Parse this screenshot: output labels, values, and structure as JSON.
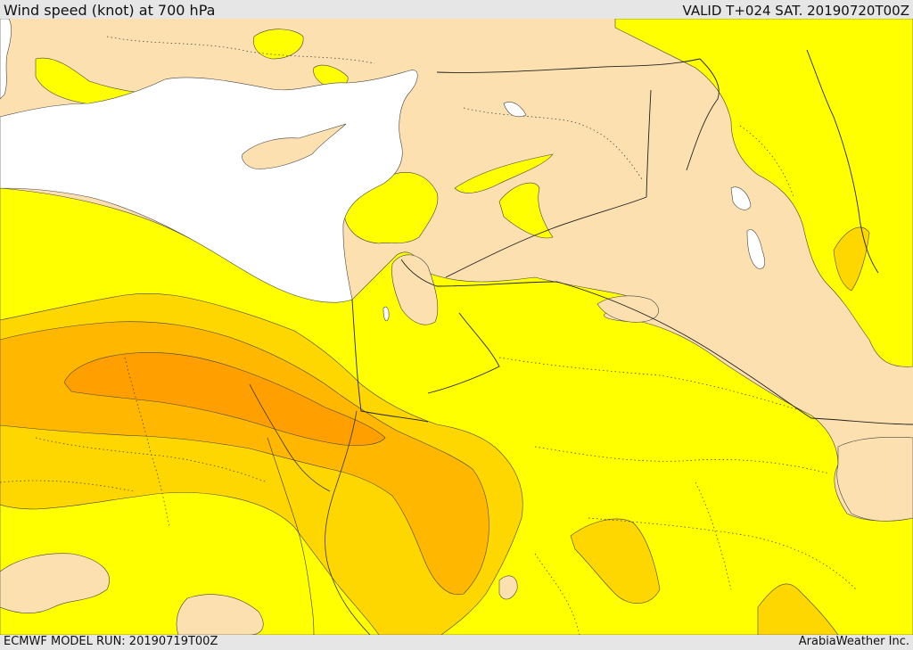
{
  "header": {
    "title": "Wind speed (knot) at 700 hPa",
    "valid": "VALID T+024 SAT. 20190720T00Z"
  },
  "footer": {
    "model_run": "ECMWF MODEL RUN: 20190719T00Z",
    "credit": "ArabiaWeather Inc."
  },
  "colors": {
    "calm": "#fde0b0",
    "light": "#ffff00",
    "moderate": "#ffd700",
    "strong": "#ffb700",
    "stronger": "#ff9f00",
    "sea": "#ffffff"
  }
}
